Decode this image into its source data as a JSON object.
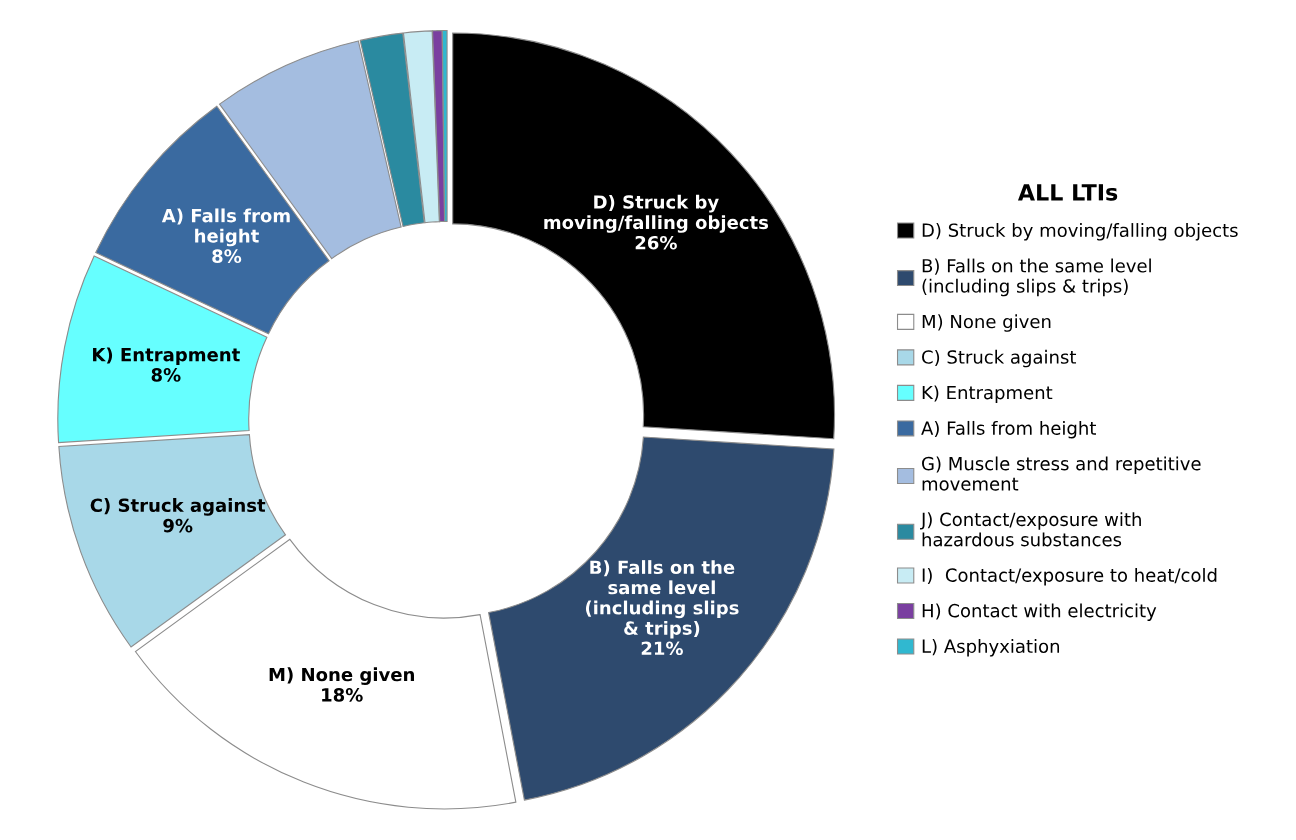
{
  "chart_data": {
    "type": "donut",
    "legend_title": "ALL LTIs",
    "legend": "right",
    "categories": [
      "D) Struck by moving/falling objects",
      "B) Falls on the same level\n(including slips & trips)",
      "M) None given",
      "C) Struck against",
      "K) Entrapment",
      "A) Falls from height",
      "G) Muscle stress and repetitive\nmovement",
      "J) Contact/exposure with\nhazardous substances",
      "I)  Contact/exposure to heat/cold",
      "H) Contact with electricity",
      "L) Asphyxiation"
    ],
    "values": [
      26,
      21,
      18,
      9,
      8,
      8,
      6.4,
      1.8,
      1.2,
      0.4,
      0.2
    ],
    "colors": [
      "#000000",
      "#2e4a6e",
      "#ffffff",
      "#a8d8e8",
      "#66ffff",
      "#3a6aa0",
      "#a4bde0",
      "#2a8aa0",
      "#c8ecf4",
      "#7a3fa0",
      "#30b8d0"
    ],
    "value_labels": [
      "D) Struck by\nmoving/falling objects\n26%",
      "B) Falls on the\nsame level\n(including slips\n& trips)\n21%",
      "M) None given\n18%",
      "C) Struck against\n9%",
      "K) Entrapment\n8%",
      "A) Falls from\nheight\n8%",
      null,
      null,
      null,
      null,
      null
    ]
  }
}
